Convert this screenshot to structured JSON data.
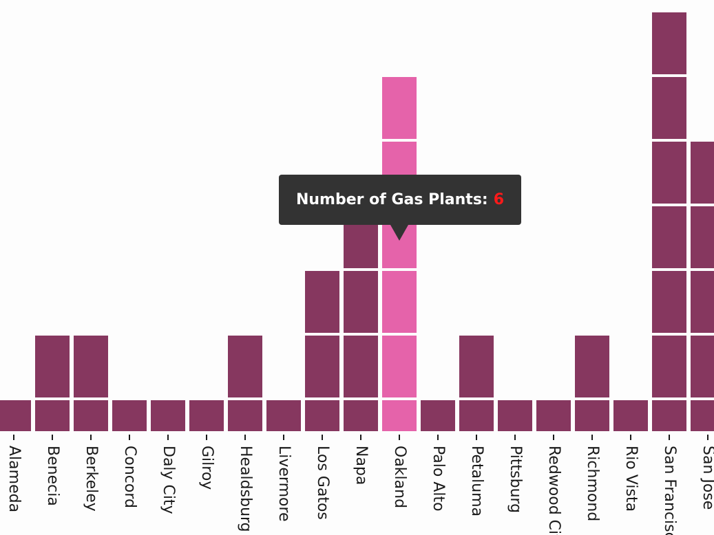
{
  "chart_data": {
    "type": "bar",
    "stacked_units": true,
    "categories": [
      "Alameda",
      "Benecia",
      "Berkeley",
      "Concord",
      "Daly City",
      "Gilroy",
      "Healdsburg",
      "Livermore",
      "Los Gatos",
      "Napa",
      "Oakland",
      "Palo Alto",
      "Petaluma",
      "Pittsburg",
      "Redwood City",
      "Richmond",
      "Rio Vista",
      "San Francisco",
      "San Jose"
    ],
    "values": [
      1,
      2,
      2,
      1,
      1,
      1,
      2,
      1,
      3,
      4,
      6,
      1,
      2,
      1,
      1,
      2,
      1,
      7,
      5
    ],
    "highlighted_category": "Oakland",
    "title": "",
    "xlabel": "",
    "ylabel": "",
    "colors": {
      "bar": "#86375f",
      "highlight": "#e563aa"
    }
  },
  "tooltip": {
    "label": "Number of Gas Plants:",
    "value": "6",
    "value_color": "#ff1a1a"
  }
}
